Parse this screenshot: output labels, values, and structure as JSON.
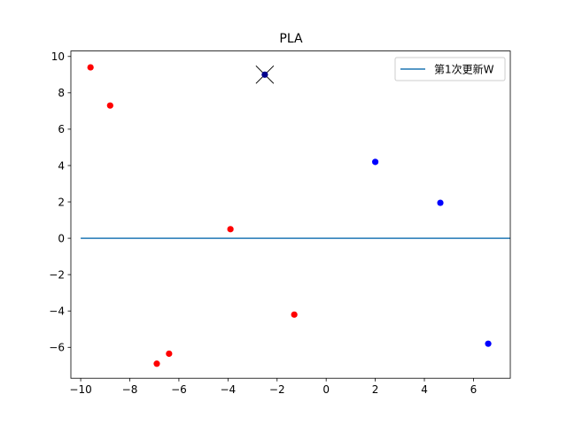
{
  "chart_data": {
    "type": "scatter",
    "title": "PLA",
    "xlabel": "",
    "ylabel": "",
    "xlim": [
      -10.4,
      7.5
    ],
    "ylim": [
      -7.7,
      10.3
    ],
    "xticks": [
      -10,
      -8,
      -6,
      -4,
      -2,
      0,
      2,
      4,
      6
    ],
    "yticks": [
      -6,
      -4,
      -2,
      0,
      2,
      4,
      6,
      8,
      10
    ],
    "grid": false,
    "legend_position": "top-right",
    "series": [
      {
        "marker": "circle",
        "color": "#ff0000",
        "points": [
          {
            "x": -9.6,
            "y": 9.4
          },
          {
            "x": -8.8,
            "y": 7.3
          },
          {
            "x": -3.9,
            "y": 0.5
          },
          {
            "x": -1.3,
            "y": -4.2
          },
          {
            "x": -6.4,
            "y": -6.35
          },
          {
            "x": -6.9,
            "y": -6.9
          }
        ]
      },
      {
        "marker": "circle",
        "color": "#0000ff",
        "points": [
          {
            "x": 2.0,
            "y": 4.2
          },
          {
            "x": 4.65,
            "y": 1.95
          },
          {
            "x": 6.6,
            "y": -5.8
          }
        ]
      },
      {
        "marker": "circle-with-x",
        "color": "#00008b",
        "points": [
          {
            "x": -2.5,
            "y": 9.0
          }
        ]
      },
      {
        "type": "line",
        "name": "第1次更新W",
        "color": "#1f77b4",
        "x": [
          -10,
          7.5
        ],
        "y": [
          0,
          0
        ]
      }
    ]
  }
}
